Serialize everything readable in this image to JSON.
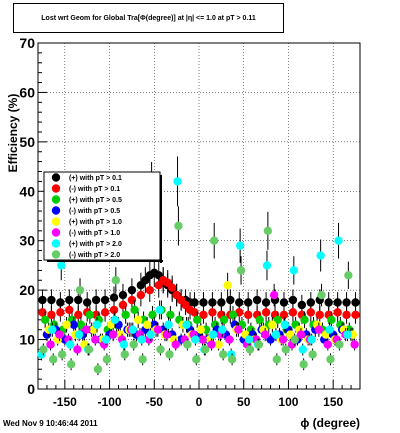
{
  "footer": {
    "timestamp": "Wed Nov  9 10:46:44 2011"
  },
  "chart_data": {
    "type": "scatter",
    "title": "Lost wrt Geom for Global Tra[Φ(degree)] at |η| <= 1.0 at pT > 0.11",
    "xlabel": "ϕ (degree)",
    "ylabel": "Efficiency (%)",
    "xlim": [
      -180,
      180
    ],
    "ylim": [
      0,
      70
    ],
    "x_ticks": [
      -150,
      -100,
      -50,
      0,
      50,
      100,
      150
    ],
    "x_tick_labels": [
      "-150",
      "-100",
      "-50",
      "0",
      "50",
      "100",
      "150"
    ],
    "y_ticks": [
      0,
      10,
      20,
      30,
      40,
      50,
      60,
      70
    ],
    "y_tick_labels": [
      "0",
      "10",
      "20",
      "30",
      "40",
      "50",
      "60",
      "70"
    ],
    "grid": true,
    "legend_position": "left",
    "series": [
      {
        "name": "(+) with pT > 0.1",
        "color": "#000000",
        "error_bars": true,
        "x": [
          -175,
          -165,
          -155,
          -145,
          -135,
          -125,
          -115,
          -105,
          -95,
          -85,
          -75,
          -65,
          -60,
          -55,
          -50,
          -45,
          -40,
          -35,
          -30,
          -25,
          -20,
          -15,
          -10,
          -5,
          5,
          15,
          25,
          35,
          45,
          55,
          65,
          75,
          85,
          95,
          105,
          115,
          125,
          135,
          145,
          155,
          165,
          175
        ],
        "y": [
          18,
          18,
          17.5,
          18,
          18,
          17.5,
          18,
          18,
          18.5,
          19,
          20,
          21,
          22,
          23,
          23.5,
          23,
          22,
          21,
          20,
          19,
          18,
          18,
          17.5,
          17.5,
          17.5,
          17.5,
          17.5,
          18,
          17.5,
          17.5,
          18,
          17.5,
          18,
          17.5,
          18,
          17,
          17.5,
          18,
          17.5,
          17.5,
          17.5,
          17.5
        ]
      },
      {
        "name": "(-) with pT > 0.1",
        "color": "#ff0000",
        "error_bars": true,
        "x": [
          -175,
          -165,
          -155,
          -145,
          -135,
          -125,
          -115,
          -105,
          -95,
          -85,
          -75,
          -65,
          -55,
          -45,
          -40,
          -35,
          -30,
          -25,
          -20,
          -15,
          -10,
          -5,
          5,
          15,
          25,
          35,
          45,
          55,
          65,
          75,
          85,
          95,
          105,
          115,
          125,
          135,
          145,
          155,
          165,
          175
        ],
        "y": [
          15.5,
          15,
          15.5,
          16,
          15,
          15.5,
          15,
          15.5,
          16,
          17,
          18,
          19,
          20,
          21,
          22,
          21.5,
          20.5,
          19,
          18,
          17,
          16,
          15.5,
          15,
          15.5,
          15,
          15,
          15.5,
          15,
          15,
          15.5,
          15,
          15,
          15.5,
          15,
          15.5,
          15,
          15,
          15.5,
          15,
          15
        ]
      },
      {
        "name": "(+) with pT > 0.5",
        "color": "#00cc00",
        "error_bars": true,
        "x": [
          -172,
          -162,
          -152,
          -142,
          -132,
          -122,
          -112,
          -102,
          -92,
          -82,
          -72,
          -62,
          -52,
          -42,
          -32,
          -22,
          -12,
          -2,
          8,
          18,
          28,
          38,
          48,
          58,
          68,
          78,
          88,
          98,
          108,
          118,
          128,
          138,
          148,
          158,
          168
        ],
        "y": [
          14,
          13,
          12,
          14,
          13,
          15,
          14,
          12,
          13,
          15,
          16,
          14,
          15,
          16,
          15,
          14,
          13,
          14,
          12,
          13,
          14,
          15,
          13,
          12,
          14,
          13,
          14,
          12,
          13,
          14,
          13,
          12,
          14,
          13,
          12
        ]
      },
      {
        "name": "(-) with pT > 0.5",
        "color": "#0000ff",
        "error_bars": true,
        "x": [
          -170,
          -160,
          -150,
          -140,
          -130,
          -120,
          -110,
          -100,
          -90,
          -80,
          -70,
          -60,
          -50,
          -40,
          -30,
          -20,
          -10,
          0,
          10,
          20,
          30,
          40,
          50,
          60,
          70,
          80,
          90,
          100,
          110,
          120,
          130,
          140,
          150,
          160,
          170
        ],
        "y": [
          11,
          12,
          10,
          13,
          11,
          12,
          10,
          11,
          13,
          12,
          11,
          12,
          13,
          12,
          11,
          10,
          12,
          11,
          10,
          12,
          11,
          13,
          10,
          11,
          12,
          10,
          11,
          12,
          10,
          11,
          12,
          10,
          11,
          12,
          11
        ]
      },
      {
        "name": "(+) with pT > 1.0",
        "color": "#ffff00",
        "error_bars": true,
        "x": [
          -168,
          -158,
          -148,
          -138,
          -128,
          -118,
          -108,
          -98,
          -88,
          -78,
          -68,
          -58,
          -48,
          -38,
          -28,
          -18,
          -8,
          2,
          12,
          22,
          32,
          42,
          52,
          62,
          72,
          82,
          92,
          102,
          112,
          122,
          132,
          142,
          152,
          162,
          172
        ],
        "y": [
          12,
          10,
          13,
          11,
          9,
          12,
          10,
          13,
          11,
          12,
          14,
          13,
          12,
          11,
          10,
          13,
          11,
          12,
          10,
          9,
          21,
          12,
          11,
          10,
          12,
          13,
          10,
          11,
          12,
          10,
          13,
          11,
          10,
          12,
          11
        ]
      },
      {
        "name": "(-) with pT > 1.0",
        "color": "#ff00ff",
        "error_bars": true,
        "x": [
          -166,
          -156,
          -146,
          -136,
          -126,
          -116,
          -106,
          -96,
          -86,
          -76,
          -66,
          -56,
          -46,
          -36,
          -26,
          -16,
          -6,
          4,
          14,
          24,
          34,
          44,
          54,
          64,
          74,
          84,
          94,
          104,
          114,
          124,
          134,
          144,
          154,
          164,
          174
        ],
        "y": [
          9,
          11,
          10,
          8,
          12,
          10,
          9,
          11,
          10,
          12,
          11,
          10,
          12,
          11,
          9,
          10,
          11,
          10,
          9,
          11,
          10,
          12,
          9,
          10,
          11,
          19,
          10,
          9,
          11,
          10,
          12,
          9,
          10,
          11,
          9
        ]
      },
      {
        "name": "(+) with pT > 2.0",
        "color": "#00ffff",
        "error_bars": true,
        "x": [
          -176,
          -164,
          -154,
          -144,
          -134,
          -124,
          -114,
          -104,
          -94,
          -84,
          -74,
          -64,
          -54,
          -44,
          -34,
          -24,
          -14,
          -4,
          6,
          16,
          26,
          36,
          46,
          56,
          66,
          76,
          86,
          96,
          106,
          116,
          126,
          136,
          146,
          156,
          166
        ],
        "y": [
          7,
          12,
          25,
          9,
          11,
          8,
          13,
          10,
          14,
          9,
          12,
          10,
          11,
          16,
          13,
          42,
          13,
          10,
          8,
          11,
          12,
          7,
          29,
          10,
          9,
          25,
          11,
          13,
          24,
          8,
          10,
          27,
          12,
          30,
          11
        ]
      },
      {
        "name": "(-) with pT > 2.0",
        "color": "#66cc66",
        "error_bars": true,
        "x": [
          -174,
          -163,
          -153,
          -143,
          -133,
          -123,
          -113,
          -103,
          -93,
          -83,
          -73,
          -63,
          -53,
          -43,
          -33,
          -23,
          -13,
          -3,
          7,
          17,
          27,
          37,
          47,
          57,
          67,
          77,
          87,
          97,
          107,
          117,
          127,
          137,
          147,
          157,
          167
        ],
        "y": [
          8,
          6,
          7,
          5,
          20,
          8,
          4,
          6,
          22,
          7,
          9,
          6,
          41,
          8,
          7,
          33,
          9,
          6,
          8,
          30,
          7,
          6,
          24,
          8,
          9,
          32,
          6,
          8,
          10,
          5,
          7,
          19,
          6,
          9,
          23
        ]
      }
    ]
  }
}
